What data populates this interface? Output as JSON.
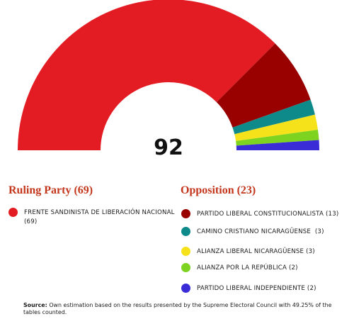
{
  "chart_data": {
    "type": "pie",
    "total": "92",
    "series": [
      {
        "name": "FRENTE SANDINISTA DE LIBERACIÓN NACIONAL",
        "value": 69,
        "color": "#e31b23"
      },
      {
        "name": "PARTIDO LIBERAL CONSTITUCIONALISTA",
        "value": 13,
        "color": "#990000"
      },
      {
        "name": "CAMINO CRISTIANO NICARAGÜENSE",
        "value": 3,
        "color": "#0e8a8a"
      },
      {
        "name": "ALIANZA LIBERAL NICARAGÜENSE",
        "value": 3,
        "color": "#f5e21b"
      },
      {
        "name": "ALIANZA POR LA REPÚBLICA",
        "value": 2,
        "color": "#7ed321"
      },
      {
        "name": "PARTIDO LIBERAL INDEPENDIENTE",
        "value": 2,
        "color": "#3a2dd8"
      }
    ]
  },
  "legend": {
    "ruling_title": "Ruling Party (69)",
    "opposition_title": "Opposition (23)",
    "ruling": [
      {
        "label_line1": "FRENTE SANDINISTA DE LIBERACIÓN NACIONAL",
        "label_line2": "(69)",
        "color": "#e31b23"
      }
    ],
    "opposition": [
      {
        "label": "PARTIDO LIBERAL CONSTITUCIONALISTA (13)",
        "color": "#990000"
      },
      {
        "label": "CAMINO CRISTIANO NICARAGÜENSE  (3)",
        "color": "#0e8a8a"
      },
      {
        "label": "ALIANZA LIBERAL NICARAGÜENSE (3)",
        "color": "#f5e21b"
      },
      {
        "label": "ALIANZA POR LA REPÚBLICA (2)",
        "color": "#7ed321"
      },
      {
        "label": "PARTIDO LIBERAL INDEPENDIENTE (2)",
        "color": "#3a2dd8"
      }
    ]
  },
  "source": {
    "label": "Source:",
    "text": " Own estimation based on the results presented by the Supreme Electoral Council with 49.25% of the tables counted."
  }
}
